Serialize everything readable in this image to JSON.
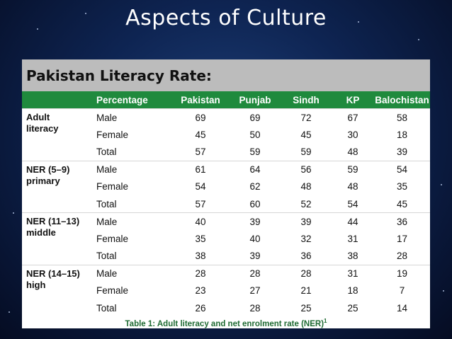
{
  "slide": {
    "title": "Aspects of Culture",
    "subtitle": "Pakistan Literacy Rate:",
    "caption": "Table 1: Adult literacy and net enrolment rate (NER)",
    "caption_sup": "1"
  },
  "table": {
    "headers": [
      "",
      "Percentage",
      "Pakistan",
      "Punjab",
      "Sindh",
      "KP",
      "Balochistan"
    ],
    "groups": [
      {
        "name_line1": "Adult",
        "name_line2": "literacy",
        "rows": [
          {
            "label": "Male",
            "values": [
              "69",
              "69",
              "72",
              "67",
              "58"
            ]
          },
          {
            "label": "Female",
            "values": [
              "45",
              "50",
              "45",
              "30",
              "18"
            ]
          },
          {
            "label": "Total",
            "values": [
              "57",
              "59",
              "59",
              "48",
              "39"
            ]
          }
        ]
      },
      {
        "name_line1": "NER (5–9)",
        "name_line2": "primary",
        "rows": [
          {
            "label": "Male",
            "values": [
              "61",
              "64",
              "56",
              "59",
              "54"
            ]
          },
          {
            "label": "Female",
            "values": [
              "54",
              "62",
              "48",
              "48",
              "35"
            ]
          },
          {
            "label": "Total",
            "values": [
              "57",
              "60",
              "52",
              "54",
              "45"
            ]
          }
        ]
      },
      {
        "name_line1": "NER (11–13)",
        "name_line2": "middle",
        "rows": [
          {
            "label": "Male",
            "values": [
              "40",
              "39",
              "39",
              "44",
              "36"
            ]
          },
          {
            "label": "Female",
            "values": [
              "35",
              "40",
              "32",
              "31",
              "17"
            ]
          },
          {
            "label": "Total",
            "values": [
              "38",
              "39",
              "36",
              "38",
              "28"
            ]
          }
        ]
      },
      {
        "name_line1": "NER (14–15)",
        "name_line2": "high",
        "rows": [
          {
            "label": "Male",
            "values": [
              "28",
              "28",
              "28",
              "31",
              "19"
            ]
          },
          {
            "label": "Female",
            "values": [
              "23",
              "27",
              "21",
              "18",
              "7"
            ]
          },
          {
            "label": "Total",
            "values": [
              "26",
              "28",
              "25",
              "25",
              "14"
            ]
          }
        ]
      }
    ]
  },
  "colors": {
    "header_green": "#1f8a3d",
    "background_navy": "#0e2452",
    "panel_header_gray": "#bcbcbc"
  }
}
